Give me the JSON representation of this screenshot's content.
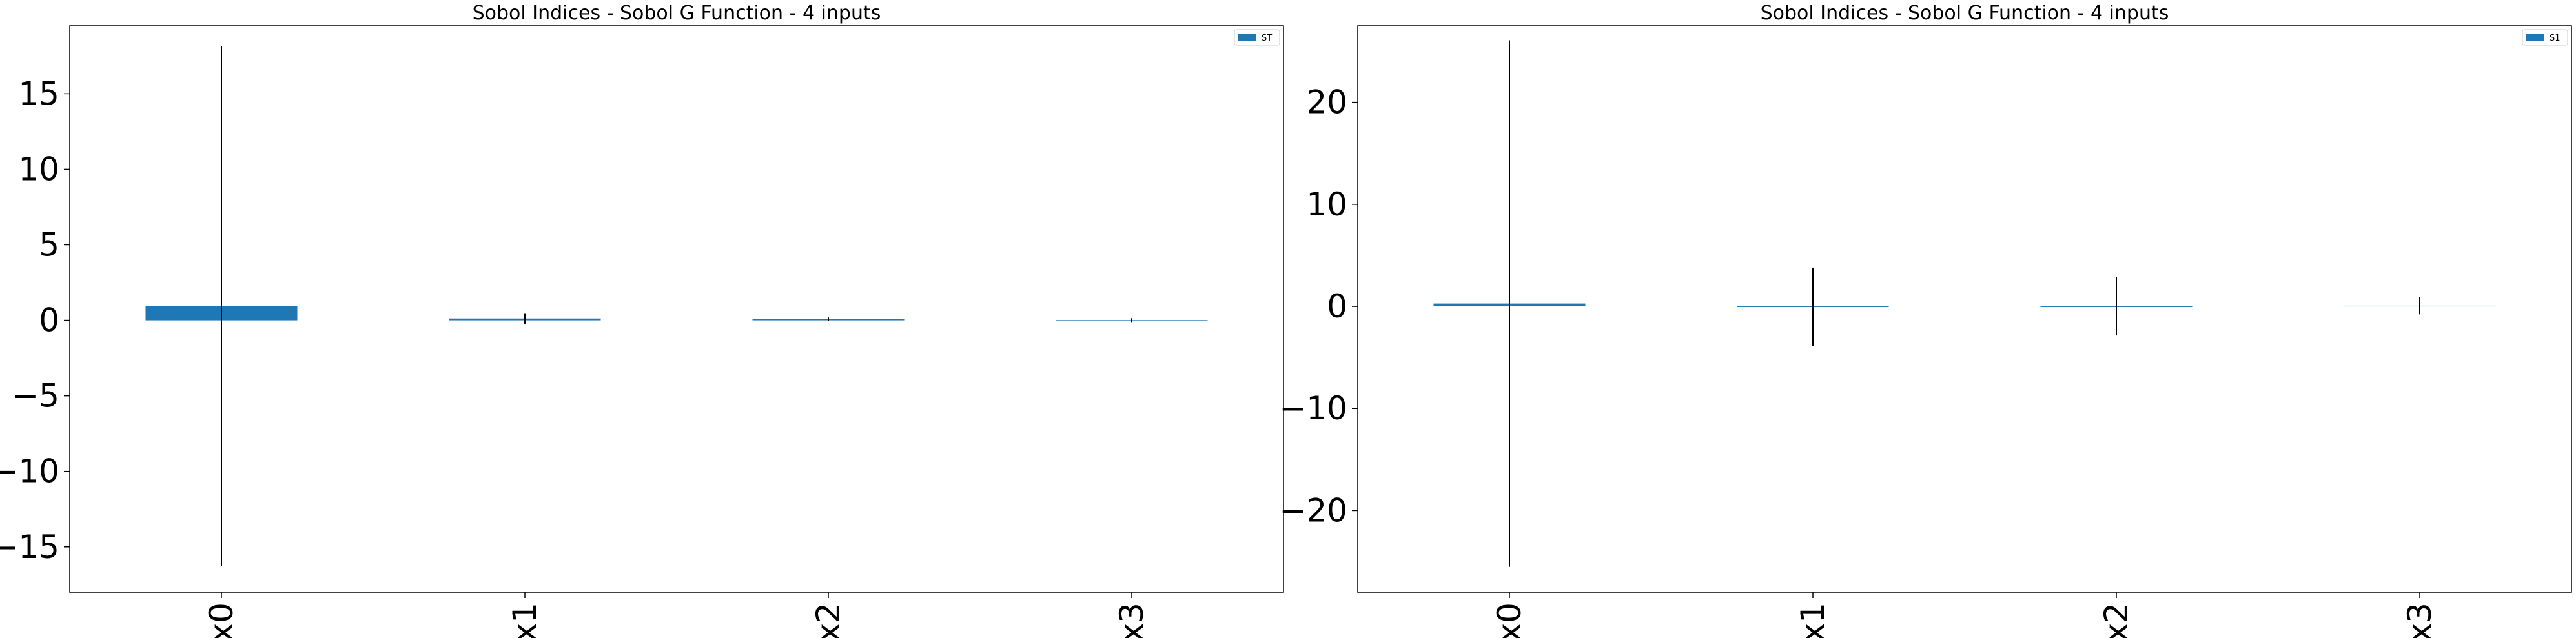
{
  "chart_data": [
    {
      "type": "bar",
      "title": "Sobol Indices - Sobol G Function - 4 inputs",
      "xlabel": "",
      "ylabel": "",
      "categories": [
        "x0",
        "x1",
        "x2",
        "x3"
      ],
      "series": [
        {
          "name": "ST",
          "values": [
            0.95,
            0.12,
            0.07,
            0.01
          ],
          "error": [
            17.2,
            0.35,
            0.12,
            0.13
          ]
        }
      ],
      "ylim": [
        -18,
        19.5
      ],
      "yticks": [
        -15,
        -10,
        -5,
        0,
        5,
        10,
        15
      ],
      "ytick_labels": [
        "−15",
        "−10",
        "−5",
        "0",
        "5",
        "10",
        "15"
      ],
      "legend": "top-right",
      "grid": false,
      "bar_color": "#1f77b4",
      "error_color": "#000000"
    },
    {
      "type": "bar",
      "title": "Sobol Indices - Sobol G Function - 4 inputs",
      "xlabel": "",
      "ylabel": "",
      "categories": [
        "x0",
        "x1",
        "x2",
        "x3"
      ],
      "series": [
        {
          "name": "S1",
          "values": [
            0.28,
            -0.05,
            0.0,
            0.07
          ],
          "error": [
            25.8,
            3.85,
            2.85,
            0.85
          ]
        }
      ],
      "ylim": [
        -28,
        27.5
      ],
      "yticks": [
        -20,
        -10,
        0,
        10,
        20
      ],
      "ytick_labels": [
        "−20",
        "−10",
        "0",
        "10",
        "20"
      ],
      "legend": "top-right",
      "grid": false,
      "bar_color": "#1f77b4",
      "error_color": "#000000"
    }
  ]
}
